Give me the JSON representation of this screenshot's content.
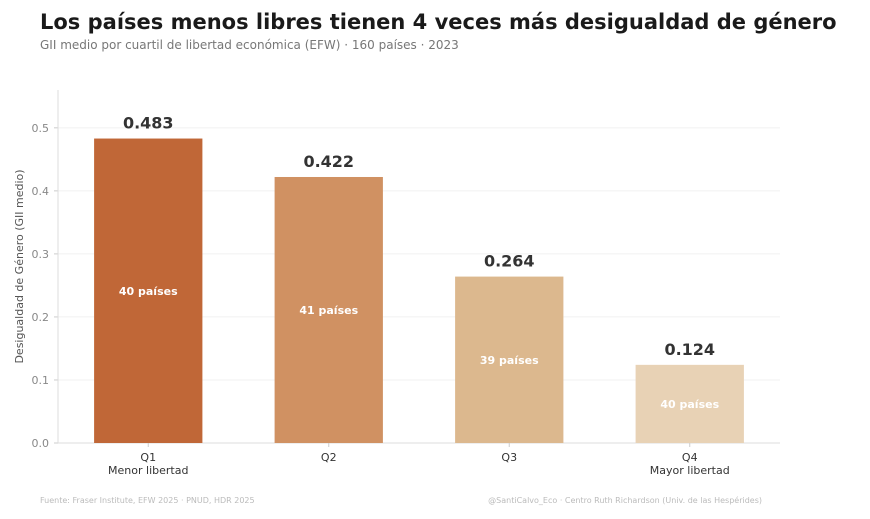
{
  "header": {
    "title": "Los países menos libres tienen 4 veces más desigualdad de género",
    "subtitle": "GII medio por cuartil de libertad económica (EFW) · 160 países · 2023"
  },
  "footer": {
    "source": "Fuente: Fraser Institute, EFW 2025 · PNUD, HDR 2025",
    "credit": "@SantiCalvo_Eco · Centro Ruth Richardson (Univ. de las Hespérides)"
  },
  "chart_data": {
    "type": "bar",
    "title": "Los países menos libres tienen 4 veces más desigualdad de género",
    "subtitle": "GII medio por cuartil de libertad económica (EFW) · 160 países · 2023",
    "xlabel": "",
    "ylabel": "Desigualdad de Género (GII medio)",
    "ylim": [
      0,
      0.56
    ],
    "yticks": [
      "0.0",
      "0.1",
      "0.2",
      "0.3",
      "0.4",
      "0.5"
    ],
    "grid": true,
    "legend": "none",
    "categories": [
      "Q1",
      "Q2",
      "Q3",
      "Q4"
    ],
    "category_sublabels": [
      "Menor libertad",
      "",
      "",
      "Mayor libertad"
    ],
    "values": [
      0.483,
      0.422,
      0.264,
      0.124
    ],
    "value_labels": [
      "0.483",
      "0.422",
      "0.264",
      "0.124"
    ],
    "count_labels": [
      "40 países",
      "41 países",
      "39 países",
      "40 países"
    ],
    "colors": [
      "#c06737",
      "#d09162",
      "#dcb88e",
      "#e8d2b5"
    ]
  }
}
